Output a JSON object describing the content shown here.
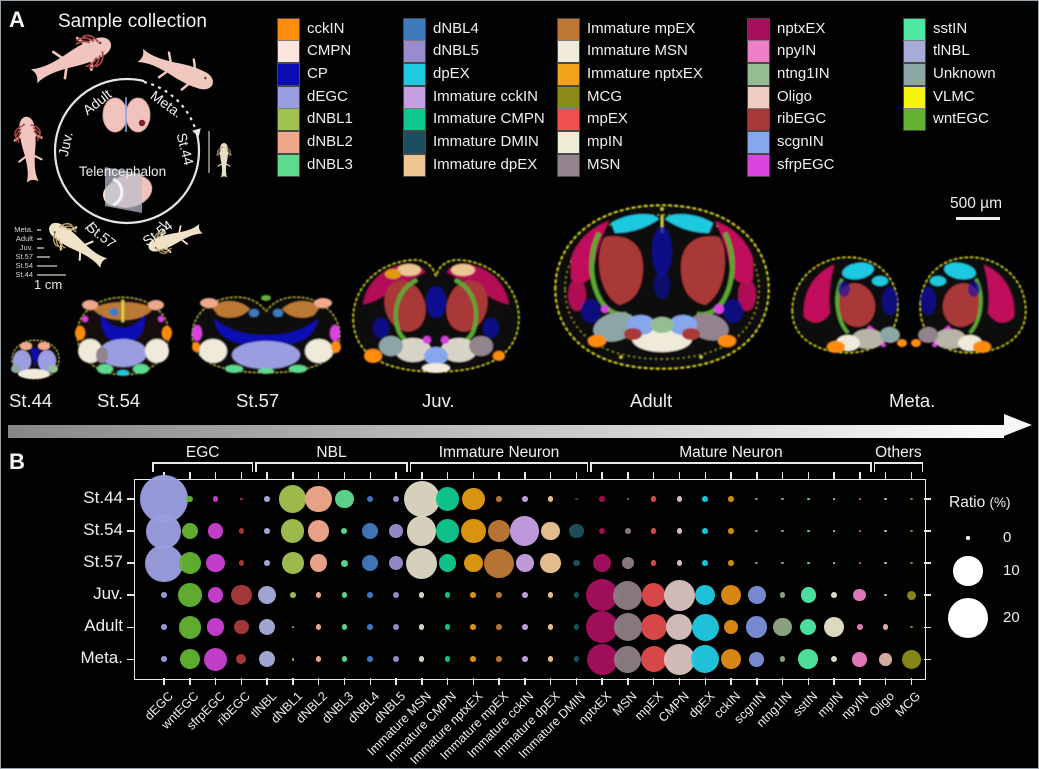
{
  "panel_a": {
    "label": "A",
    "title": "Sample collection",
    "cycle": {
      "center": "Telencephalon",
      "adult": "Adult",
      "meta": "Meta.",
      "juv": "Juv.",
      "st44": "St.44",
      "st57": "St.57",
      "st54": "St.54"
    },
    "size_legend": {
      "rows": [
        "Meta.",
        "Adult",
        "Juv.",
        "St.57",
        "St.54",
        "St.44"
      ],
      "line_lengths": [
        4,
        5,
        7,
        13,
        20,
        29
      ],
      "caption": "1 cm"
    },
    "scale_bar": "500 µm",
    "stage_labels": [
      "St.44",
      "St.54",
      "St.57",
      "Juv.",
      "Adult",
      "Meta."
    ],
    "legend_columns": [
      [
        {
          "label": "cckIN",
          "color": "#FF8C0A"
        },
        {
          "label": "CMPN",
          "color": "#FCE4E0"
        },
        {
          "label": "CP",
          "color": "#0B0BB4"
        },
        {
          "label": "dEGC",
          "color": "#9A9EE0"
        },
        {
          "label": "dNBL1",
          "color": "#A2C24F"
        },
        {
          "label": "dNBL2",
          "color": "#EFA88C"
        },
        {
          "label": "dNBL3",
          "color": "#5FD98F"
        }
      ],
      [
        {
          "label": "dNBL4",
          "color": "#3E7BBE"
        },
        {
          "label": "dNBL5",
          "color": "#9A8BCD"
        },
        {
          "label": "dpEX",
          "color": "#1FC9E0"
        },
        {
          "label": "Immature cckIN",
          "color": "#C59FE4"
        },
        {
          "label": "Immature CMPN",
          "color": "#0FC78C"
        },
        {
          "label": "Immature DMIN",
          "color": "#1D4E5E"
        },
        {
          "label": "Immature dpEX",
          "color": "#EBC592"
        }
      ],
      [
        {
          "label": "Immature mpEX",
          "color": "#BC7935"
        },
        {
          "label": "Immature MSN",
          "color": "#EFEADA"
        },
        {
          "label": "Immature nptxEX",
          "color": "#F0A418"
        },
        {
          "label": "MCG",
          "color": "#8A8A18"
        },
        {
          "label": "mpEX",
          "color": "#F04F4F"
        },
        {
          "label": "mpIN",
          "color": "#EFEDD6"
        },
        {
          "label": "MSN",
          "color": "#93838D"
        }
      ],
      [
        {
          "label": "nptxEX",
          "color": "#A50F5C"
        },
        {
          "label": "npyIN",
          "color": "#F07EC6"
        },
        {
          "label": "ntng1IN",
          "color": "#95BD93"
        },
        {
          "label": "Oligo",
          "color": "#EFCDC3"
        },
        {
          "label": "ribEGC",
          "color": "#A93939"
        },
        {
          "label": "scgnIN",
          "color": "#86A6EE"
        },
        {
          "label": "sfrpEGC",
          "color": "#D943DF"
        }
      ],
      [
        {
          "label": "sstIN",
          "color": "#4FE8A2"
        },
        {
          "label": "tlNBL",
          "color": "#A7ABDA"
        },
        {
          "label": "Unknown",
          "color": "#8CA5A5"
        },
        {
          "label": "VLMC",
          "color": "#F5F50F"
        },
        {
          "label": "wntEGC",
          "color": "#63B232"
        }
      ]
    ]
  },
  "panel_b": {
    "label": "B",
    "groups": [
      {
        "label": "EGC",
        "from": 0,
        "to": 3
      },
      {
        "label": "NBL",
        "from": 4,
        "to": 9
      },
      {
        "label": "Immature Neuron",
        "from": 10,
        "to": 16
      },
      {
        "label": "Mature Neuron",
        "from": 17,
        "to": 27
      },
      {
        "label": "Others",
        "from": 28,
        "to": 29
      }
    ],
    "ratio_legend": {
      "title": "Ratio",
      "unit": "(%)",
      "entries": [
        0,
        10,
        20
      ]
    }
  },
  "chart_data": {
    "type": "scatter",
    "subtype": "bubble-matrix-dotplot",
    "title": "Cell-type composition ratio per stage",
    "size_encoding": "Ratio (%)",
    "size_legend_values": [
      0,
      10,
      20
    ],
    "rows": [
      "St.44",
      "St.54",
      "St.57",
      "Juv.",
      "Adult",
      "Meta."
    ],
    "columns": [
      "dEGC",
      "wntEGC",
      "sfrpEGC",
      "ribEGC",
      "tlNBL",
      "dNBL1",
      "dNBL2",
      "dNBL3",
      "dNBL4",
      "dNBL5",
      "Immature MSN",
      "Immature CMPN",
      "Immature nptxEX",
      "Immature mpEX",
      "Immature cckIN",
      "Immature dpEX",
      "Immature DMIN",
      "nptxEX",
      "MSN",
      "mpEX",
      "CMPN",
      "dpEX",
      "cckIN",
      "scgnIN",
      "ntng1IN",
      "sstIN",
      "mpIN",
      "npyIN",
      "Oligo",
      "MCG"
    ],
    "colors": [
      "#9A9EE0",
      "#63B232",
      "#C93FD0",
      "#A93939",
      "#A7ABDA",
      "#A2C24F",
      "#EFA88C",
      "#5FD98F",
      "#3E7BBE",
      "#9A8BCD",
      "#DDD8C4",
      "#0FC78C",
      "#E09A10",
      "#BC7935",
      "#C59FE4",
      "#EBC592",
      "#1D4E5E",
      "#A50F5C",
      "#8D7D85",
      "#E04A4A",
      "#D9C2BE",
      "#1FC9E0",
      "#E08A14",
      "#7B8FD6",
      "#8FA882",
      "#4FE8A2",
      "#E5E2C8",
      "#E87BC0",
      "#DCB2A8",
      "#8A8A18"
    ],
    "values": [
      [
        30,
        0.2,
        0.1,
        0.05,
        0.1,
        8.5,
        8,
        3.5,
        0.2,
        0.1,
        16,
        6,
        5.5,
        0.1,
        0.1,
        0.1,
        0.05,
        0.1,
        0.05,
        0.1,
        0.1,
        0.1,
        0.1,
        0.05,
        0.05,
        0.05,
        0.05,
        0.05,
        0.05,
        0.05
      ],
      [
        15,
        2.7,
        2.3,
        0.1,
        0.1,
        6,
        5,
        0.15,
        2.7,
        1.7,
        10,
        6,
        6.7,
        5,
        10,
        3.5,
        2,
        0.15,
        0.1,
        0.1,
        0.1,
        0.1,
        0.1,
        0.05,
        0.05,
        0.05,
        0.05,
        0.05,
        0.05,
        0.05
      ],
      [
        17,
        5.5,
        3.5,
        0.1,
        0.1,
        5,
        3.2,
        0.25,
        2.7,
        2,
        11.5,
        3.2,
        3.5,
        10,
        3.2,
        4.5,
        0.2,
        3.5,
        1.3,
        0.1,
        0.1,
        0.1,
        0.1,
        0.05,
        0.05,
        0.05,
        0.05,
        0.05,
        0.05,
        0.05
      ],
      [
        0.1,
        6.7,
        2.3,
        4.5,
        3.5,
        0.1,
        0.1,
        0.1,
        0.1,
        0.1,
        0.1,
        0.1,
        0.1,
        0.1,
        0.1,
        0.1,
        0.1,
        12.5,
        10,
        6.1,
        11.6,
        4.5,
        4.5,
        3.2,
        0.1,
        2.3,
        0.1,
        1.4,
        0.05,
        0.5
      ],
      [
        0.1,
        5.5,
        3.2,
        2,
        2.7,
        0.05,
        0.1,
        0.1,
        0.1,
        0.1,
        0.1,
        0.1,
        0.1,
        0.1,
        0.1,
        0.1,
        0.1,
        12.5,
        9.4,
        7.8,
        7.8,
        8.6,
        2,
        5,
        3.5,
        2.7,
        4.5,
        0.1,
        0.1,
        0.05
      ],
      [
        0.1,
        4.5,
        6.1,
        0.8,
        2.7,
        0.05,
        0.1,
        0.1,
        0.1,
        0.1,
        0.1,
        0.1,
        0.1,
        0.1,
        0.1,
        0.1,
        0.1,
        11.6,
        8.6,
        7.8,
        11.6,
        9.4,
        4.5,
        2,
        0.1,
        4.5,
        0.15,
        2,
        1.3,
        4
      ]
    ]
  }
}
